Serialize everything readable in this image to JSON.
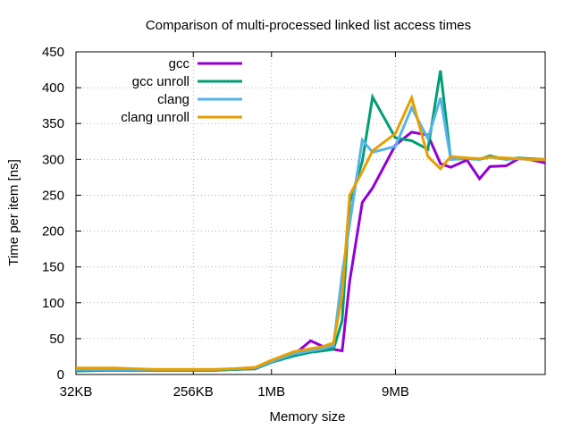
{
  "chart_data": {
    "type": "line",
    "title": "Comparison of multi-processed linked list access times",
    "xlabel": "Memory size",
    "ylabel": "Time per item [ns]",
    "x_scale": "log2",
    "xlim": [
      "32KB",
      "512MB"
    ],
    "ylim": [
      0,
      450
    ],
    "grid": true,
    "legend_position": "top-left",
    "x_ticks": [
      {
        "label": "32KB",
        "bytes": 32768
      },
      {
        "label": "256KB",
        "bytes": 262144
      },
      {
        "label": "1MB",
        "bytes": 1048576
      },
      {
        "label": "9MB",
        "bytes": 9437184
      }
    ],
    "y_ticks": [
      0,
      50,
      100,
      150,
      200,
      250,
      300,
      350,
      400,
      450
    ],
    "x_bytes": [
      32768,
      65536,
      131072,
      262144,
      393216,
      524288,
      786432,
      1048576,
      1572864,
      2097152,
      2621440,
      3145728,
      3670016,
      4194304,
      5242880,
      6291456,
      9437184,
      12582912,
      16777216,
      20971520,
      25165824,
      33554432,
      41943040,
      50331648,
      67108864,
      83886080,
      100663296,
      134217728
    ],
    "series": [
      {
        "name": "gcc",
        "color": "#9400d3",
        "values": [
          6,
          6,
          6,
          6,
          6,
          7,
          8,
          17,
          28,
          47,
          39,
          35,
          33,
          130,
          240,
          260,
          320,
          338,
          334,
          294,
          289,
          299,
          273,
          290,
          291,
          301,
          300,
          295
        ]
      },
      {
        "name": "gcc unroll",
        "color": "#009e73",
        "values": [
          5,
          6,
          6,
          6,
          6,
          7,
          8,
          17,
          26,
          31,
          33,
          35,
          75,
          240,
          297,
          387,
          330,
          326,
          314,
          424,
          300,
          301,
          300,
          305,
          300,
          302,
          301,
          300
        ]
      },
      {
        "name": "clang",
        "color": "#56b4e9",
        "values": [
          7,
          7,
          7,
          7,
          7,
          8,
          9,
          18,
          29,
          33,
          36,
          40,
          140,
          210,
          327,
          310,
          318,
          372,
          329,
          386,
          300,
          302,
          300,
          303,
          300,
          301,
          300,
          299
        ]
      },
      {
        "name": "clang unroll",
        "color": "#e69f00",
        "values": [
          9,
          9,
          7,
          7,
          7,
          8,
          10,
          20,
          32,
          36,
          39,
          44,
          110,
          250,
          283,
          312,
          336,
          386,
          304,
          287,
          304,
          302,
          301,
          303,
          302,
          301,
          300,
          300
        ]
      }
    ]
  }
}
